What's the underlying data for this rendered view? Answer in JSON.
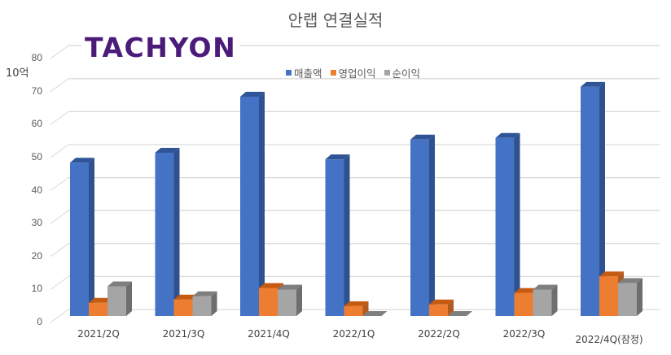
{
  "chart_data": {
    "type": "bar",
    "title": "안랩 연결실적",
    "xlabel": "",
    "ylabel": "10억",
    "ylim": [
      0,
      80
    ],
    "yticks": [
      0,
      10,
      20,
      30,
      40,
      50,
      60,
      70,
      80
    ],
    "grid": true,
    "legend_position": "top-right",
    "style": "3d-clustered-column",
    "categories": [
      "2021/2Q",
      "2021/3Q",
      "2021/4Q",
      "2022/1Q",
      "2022/2Q",
      "2022/3Q",
      "2022/4Q(잠정)"
    ],
    "series": [
      {
        "name": "매출액",
        "color": "#4472C4",
        "values": [
          46.5,
          49.5,
          66.5,
          47.5,
          53.5,
          54,
          69.5
        ]
      },
      {
        "name": "영업이익",
        "color": "#ED7D31",
        "values": [
          4,
          5,
          8.5,
          3,
          3.5,
          7,
          12
        ]
      },
      {
        "name": "순이익",
        "color": "#A5A5A5",
        "values": [
          9,
          6,
          8,
          0,
          0,
          8,
          10
        ]
      }
    ]
  },
  "logo": {
    "text": "TACHYON"
  },
  "unit_label": "10억",
  "legend": [
    {
      "label": "매출액",
      "color": "#4472C4"
    },
    {
      "label": "영업이익",
      "color": "#ED7D31"
    },
    {
      "label": "순이익",
      "color": "#A5A5A5"
    }
  ]
}
